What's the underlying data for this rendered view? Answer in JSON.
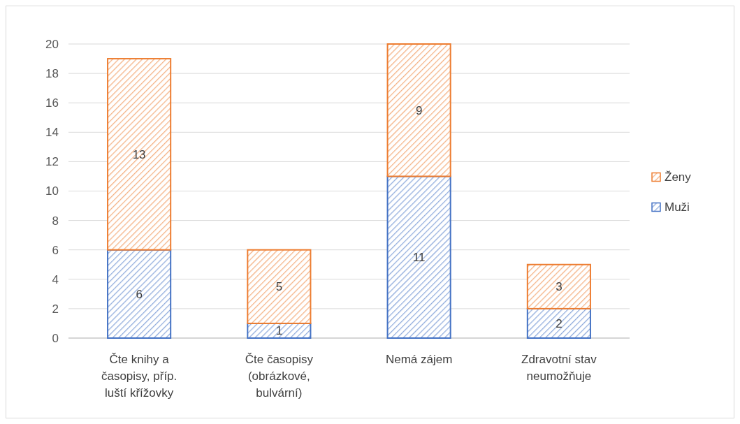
{
  "chart_data": {
    "type": "bar",
    "stacked": true,
    "categories": [
      "Čte knihy a časopisy, příp. luští křížovky",
      "Čte časopisy (obrázkové, bulvární)",
      "Nemá zájem",
      "Zdravotní stav neumožňuje"
    ],
    "series": [
      {
        "name": "Muži",
        "color": "#4472c4",
        "values": [
          6,
          1,
          11,
          2
        ]
      },
      {
        "name": "Ženy",
        "color": "#ed7d31",
        "values": [
          13,
          5,
          9,
          3
        ]
      }
    ],
    "ylim": [
      0,
      20
    ],
    "yticks": [
      0,
      2,
      4,
      6,
      8,
      10,
      12,
      14,
      16,
      18,
      20
    ],
    "grid": "y",
    "legend": "right",
    "data_labels": true
  }
}
